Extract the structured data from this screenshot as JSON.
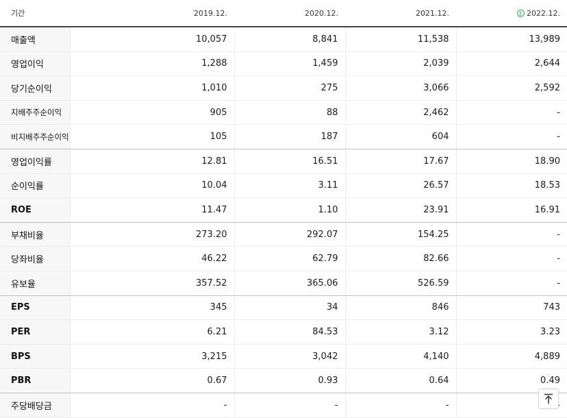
{
  "header": {
    "label": "기간",
    "periods": [
      "2019.12.",
      "2020.12.",
      "2021.12.",
      "2022.12."
    ],
    "estimate_badge": "E"
  },
  "rows": [
    {
      "label": "매출액",
      "values": [
        "10,057",
        "8,841",
        "11,538",
        "13,989"
      ]
    },
    {
      "label": "영업이익",
      "values": [
        "1,288",
        "1,459",
        "2,039",
        "2,644"
      ]
    },
    {
      "label": "당기순이익",
      "values": [
        "1,010",
        "275",
        "3,066",
        "2,592"
      ]
    },
    {
      "label": "지배주주순이익",
      "values": [
        "905",
        "88",
        "2,462",
        "-"
      ]
    },
    {
      "label": "비지배주주순이익",
      "values": [
        "105",
        "187",
        "604",
        "-"
      ]
    },
    {
      "label": "영업이익률",
      "values": [
        "12.81",
        "16.51",
        "17.67",
        "18.90"
      ]
    },
    {
      "label": "순이익률",
      "values": [
        "10.04",
        "3.11",
        "26.57",
        "18.53"
      ]
    },
    {
      "label": "ROE",
      "values": [
        "11.47",
        "1.10",
        "23.91",
        "16.91"
      ]
    },
    {
      "label": "부채비율",
      "values": [
        "273.20",
        "292.07",
        "154.25",
        "-"
      ]
    },
    {
      "label": "당좌비율",
      "values": [
        "46.22",
        "62.79",
        "82.66",
        "-"
      ]
    },
    {
      "label": "유보율",
      "values": [
        "357.52",
        "365.06",
        "526.59",
        "-"
      ]
    },
    {
      "label": "EPS",
      "values": [
        "345",
        "34",
        "846",
        "743"
      ]
    },
    {
      "label": "PER",
      "values": [
        "6.21",
        "84.53",
        "3.12",
        "3.23"
      ]
    },
    {
      "label": "BPS",
      "values": [
        "3,215",
        "3,042",
        "4,140",
        "4,889"
      ]
    },
    {
      "label": "PBR",
      "values": [
        "0.67",
        "0.93",
        "0.64",
        "0.49"
      ]
    },
    {
      "label": "주당배당금",
      "values": [
        "-",
        "-",
        "-",
        "-"
      ]
    }
  ],
  "colors": {
    "estimate": "#2fae4e",
    "label_bg": "#f7f7f7"
  },
  "icons": {
    "scroll_top": "arrow-up-to-line-icon"
  }
}
